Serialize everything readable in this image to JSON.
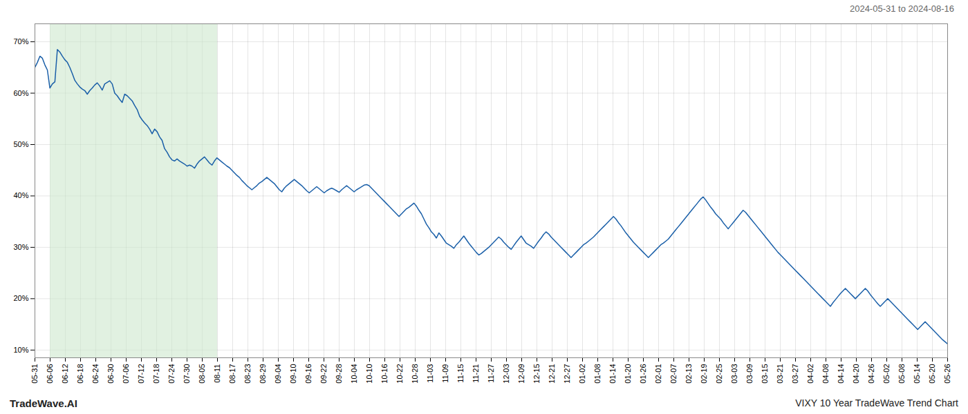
{
  "chart_data": {
    "type": "line",
    "title": "VIXY 10 Year TradeWave Trend Chart",
    "subtitle": "2024-05-31 to 2024-08-16",
    "annotation": "TradeWave.AI",
    "color": "#1a5fa8",
    "grid": true,
    "ylim": [
      0.085,
      0.735
    ],
    "yticks": [
      {
        "value": 0.1,
        "label": "10%"
      },
      {
        "value": 0.2,
        "label": "20%"
      },
      {
        "value": 0.3,
        "label": "30%"
      },
      {
        "value": 0.4,
        "label": "40%"
      },
      {
        "value": 0.5,
        "label": "50%"
      },
      {
        "value": 0.6,
        "label": "60%"
      },
      {
        "value": 0.7,
        "label": "70%"
      }
    ],
    "xlim": [
      0,
      366
    ],
    "xticks": [
      {
        "value": 0,
        "label": "05-31"
      },
      {
        "value": 6.1,
        "label": "06-06"
      },
      {
        "value": 12.2,
        "label": "06-12"
      },
      {
        "value": 18.3,
        "label": "06-18"
      },
      {
        "value": 24.4,
        "label": "06-24"
      },
      {
        "value": 30.5,
        "label": "06-30"
      },
      {
        "value": 36.6,
        "label": "07-06"
      },
      {
        "value": 42.7,
        "label": "07-12"
      },
      {
        "value": 48.8,
        "label": "07-18"
      },
      {
        "value": 54.9,
        "label": "07-24"
      },
      {
        "value": 61,
        "label": "07-30"
      },
      {
        "value": 67.1,
        "label": "08-05"
      },
      {
        "value": 73.2,
        "label": "08-11"
      },
      {
        "value": 79.3,
        "label": "08-17"
      },
      {
        "value": 85.4,
        "label": "08-23"
      },
      {
        "value": 91.5,
        "label": "08-29"
      },
      {
        "value": 97.6,
        "label": "09-04"
      },
      {
        "value": 103.7,
        "label": "09-10"
      },
      {
        "value": 109.8,
        "label": "09-16"
      },
      {
        "value": 115.9,
        "label": "09-22"
      },
      {
        "value": 122,
        "label": "09-28"
      },
      {
        "value": 128.1,
        "label": "10-04"
      },
      {
        "value": 134.2,
        "label": "10-10"
      },
      {
        "value": 140.3,
        "label": "10-16"
      },
      {
        "value": 146.4,
        "label": "10-22"
      },
      {
        "value": 152.5,
        "label": "10-28"
      },
      {
        "value": 158.6,
        "label": "11-03"
      },
      {
        "value": 164.7,
        "label": "11-09"
      },
      {
        "value": 170.8,
        "label": "11-15"
      },
      {
        "value": 176.9,
        "label": "11-21"
      },
      {
        "value": 183,
        "label": "11-27"
      },
      {
        "value": 189.1,
        "label": "12-03"
      },
      {
        "value": 195.2,
        "label": "12-09"
      },
      {
        "value": 201.3,
        "label": "12-15"
      },
      {
        "value": 207.4,
        "label": "12-21"
      },
      {
        "value": 213.5,
        "label": "12-27"
      },
      {
        "value": 219.6,
        "label": "01-02"
      },
      {
        "value": 225.7,
        "label": "01-08"
      },
      {
        "value": 231.8,
        "label": "01-14"
      },
      {
        "value": 237.9,
        "label": "01-20"
      },
      {
        "value": 244,
        "label": "01-26"
      },
      {
        "value": 250.1,
        "label": "02-01"
      },
      {
        "value": 256.2,
        "label": "02-07"
      },
      {
        "value": 262.3,
        "label": "02-13"
      },
      {
        "value": 268.4,
        "label": "02-19"
      },
      {
        "value": 274.5,
        "label": "02-25"
      },
      {
        "value": 280.6,
        "label": "03-03"
      },
      {
        "value": 286.7,
        "label": "03-09"
      },
      {
        "value": 292.8,
        "label": "03-15"
      },
      {
        "value": 298.9,
        "label": "03-21"
      },
      {
        "value": 305,
        "label": "03-27"
      },
      {
        "value": 311.1,
        "label": "04-02"
      },
      {
        "value": 317.2,
        "label": "04-08"
      },
      {
        "value": 323.3,
        "label": "04-14"
      },
      {
        "value": 329.4,
        "label": "04-20"
      },
      {
        "value": 335.5,
        "label": "04-26"
      },
      {
        "value": 341.6,
        "label": "05-02"
      },
      {
        "value": 347.7,
        "label": "05-08"
      },
      {
        "value": 353.8,
        "label": "05-14"
      },
      {
        "value": 359.9,
        "label": "05-20"
      },
      {
        "value": 366,
        "label": "05-26"
      }
    ],
    "highlight": {
      "from": "06-06",
      "to": "08-11",
      "color": "#cde8cd"
    },
    "values": [
      0.65,
      0.66,
      0.672,
      0.668,
      0.655,
      0.645,
      0.61,
      0.618,
      0.622,
      0.685,
      0.68,
      0.672,
      0.665,
      0.66,
      0.65,
      0.638,
      0.625,
      0.618,
      0.612,
      0.608,
      0.605,
      0.598,
      0.605,
      0.61,
      0.616,
      0.62,
      0.614,
      0.606,
      0.618,
      0.621,
      0.624,
      0.618,
      0.6,
      0.595,
      0.588,
      0.582,
      0.598,
      0.595,
      0.59,
      0.585,
      0.576,
      0.568,
      0.555,
      0.548,
      0.542,
      0.537,
      0.53,
      0.521,
      0.53,
      0.525,
      0.515,
      0.508,
      0.492,
      0.485,
      0.476,
      0.47,
      0.468,
      0.472,
      0.468,
      0.465,
      0.462,
      0.458,
      0.46,
      0.458,
      0.454,
      0.462,
      0.468,
      0.472,
      0.476,
      0.47,
      0.464,
      0.46,
      0.468,
      0.474,
      0.47,
      0.466,
      0.462,
      0.458,
      0.455,
      0.45,
      0.445,
      0.44,
      0.436,
      0.43,
      0.425,
      0.42,
      0.416,
      0.412,
      0.416,
      0.42,
      0.425,
      0.428,
      0.432,
      0.436,
      0.432,
      0.428,
      0.424,
      0.418,
      0.412,
      0.408,
      0.415,
      0.42,
      0.424,
      0.428,
      0.432,
      0.428,
      0.424,
      0.42,
      0.415,
      0.41,
      0.406,
      0.41,
      0.414,
      0.418,
      0.414,
      0.41,
      0.406,
      0.41,
      0.413,
      0.415,
      0.413,
      0.41,
      0.407,
      0.412,
      0.416,
      0.42,
      0.416,
      0.412,
      0.408,
      0.412,
      0.415,
      0.418,
      0.421,
      0.422,
      0.42,
      0.415,
      0.41,
      0.405,
      0.4,
      0.395,
      0.39,
      0.385,
      0.38,
      0.375,
      0.37,
      0.365,
      0.36,
      0.365,
      0.37,
      0.375,
      0.378,
      0.382,
      0.386,
      0.38,
      0.372,
      0.365,
      0.355,
      0.345,
      0.338,
      0.33,
      0.325,
      0.318,
      0.328,
      0.322,
      0.315,
      0.308,
      0.305,
      0.302,
      0.298,
      0.305,
      0.31,
      0.316,
      0.322,
      0.315,
      0.308,
      0.302,
      0.296,
      0.29,
      0.285,
      0.288,
      0.292,
      0.296,
      0.3,
      0.305,
      0.31,
      0.315,
      0.32,
      0.316,
      0.31,
      0.305,
      0.3,
      0.296,
      0.303,
      0.31,
      0.316,
      0.322,
      0.315,
      0.308,
      0.305,
      0.302,
      0.298,
      0.305,
      0.312,
      0.318,
      0.325,
      0.33,
      0.326,
      0.32,
      0.315,
      0.31,
      0.305,
      0.3,
      0.295,
      0.29,
      0.285,
      0.28,
      0.285,
      0.29,
      0.295,
      0.3,
      0.305,
      0.308,
      0.312,
      0.316,
      0.32,
      0.325,
      0.33,
      0.335,
      0.34,
      0.345,
      0.35,
      0.355,
      0.36,
      0.355,
      0.348,
      0.342,
      0.335,
      0.328,
      0.322,
      0.316,
      0.31,
      0.305,
      0.3,
      0.295,
      0.29,
      0.285,
      0.28,
      0.285,
      0.29,
      0.295,
      0.3,
      0.305,
      0.308,
      0.312,
      0.316,
      0.322,
      0.328,
      0.334,
      0.34,
      0.346,
      0.352,
      0.358,
      0.364,
      0.37,
      0.376,
      0.382,
      0.388,
      0.394,
      0.398,
      0.392,
      0.385,
      0.378,
      0.372,
      0.365,
      0.36,
      0.355,
      0.348,
      0.342,
      0.336,
      0.342,
      0.348,
      0.354,
      0.36,
      0.366,
      0.372,
      0.368,
      0.362,
      0.356,
      0.35,
      0.344,
      0.338,
      0.332,
      0.326,
      0.32,
      0.314,
      0.308,
      0.302,
      0.296,
      0.29,
      0.285,
      0.28,
      0.275,
      0.27,
      0.265,
      0.26,
      0.255,
      0.25,
      0.245,
      0.24,
      0.235,
      0.23,
      0.225,
      0.22,
      0.215,
      0.21,
      0.205,
      0.2,
      0.195,
      0.19,
      0.185,
      0.192,
      0.198,
      0.204,
      0.21,
      0.215,
      0.22,
      0.215,
      0.21,
      0.205,
      0.2,
      0.205,
      0.21,
      0.215,
      0.22,
      0.215,
      0.208,
      0.202,
      0.196,
      0.19,
      0.185,
      0.19,
      0.195,
      0.2,
      0.195,
      0.19,
      0.185,
      0.18,
      0.175,
      0.17,
      0.165,
      0.16,
      0.155,
      0.15,
      0.145,
      0.14,
      0.145,
      0.15,
      0.155,
      0.15,
      0.145,
      0.14,
      0.135,
      0.13,
      0.125,
      0.12,
      0.116,
      0.112
    ]
  }
}
